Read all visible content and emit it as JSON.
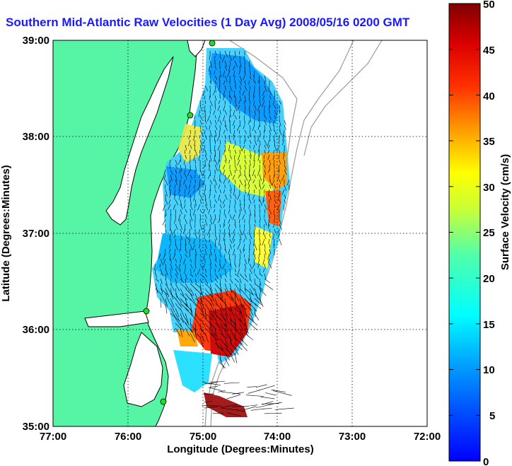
{
  "title": "Southern Mid-Atlantic Raw Velocities (1 Day Avg) 2008/05/16 0200 GMT",
  "map": {
    "xlabel": "Longitude (Degrees:Minutes)",
    "ylabel": "Latitude (Degrees:Minutes)",
    "x_ticks": [
      "77:00",
      "76:00",
      "75:00",
      "74:00",
      "73:00",
      "72:00"
    ],
    "y_ticks": [
      "39:00",
      "38:00",
      "37:00",
      "36:00",
      "35:00"
    ],
    "lon_range": [
      -77,
      -72
    ],
    "lat_range": [
      35,
      39
    ],
    "grid": "dotted",
    "land_color": "#55f5a5",
    "water_color": "#ffffff",
    "coastline_color": "#000000",
    "bathymetry_color": "#9a9a9a",
    "site_marker_color": "#22dd22",
    "vector_color": "#000000"
  },
  "colorbar": {
    "label": "Surface Velocity (cm/s)",
    "ticks": [
      "50",
      "45",
      "40",
      "35",
      "30",
      "25",
      "20",
      "15",
      "10",
      "5",
      "0"
    ],
    "min": 0,
    "max": 50,
    "colormap": "jet"
  }
}
